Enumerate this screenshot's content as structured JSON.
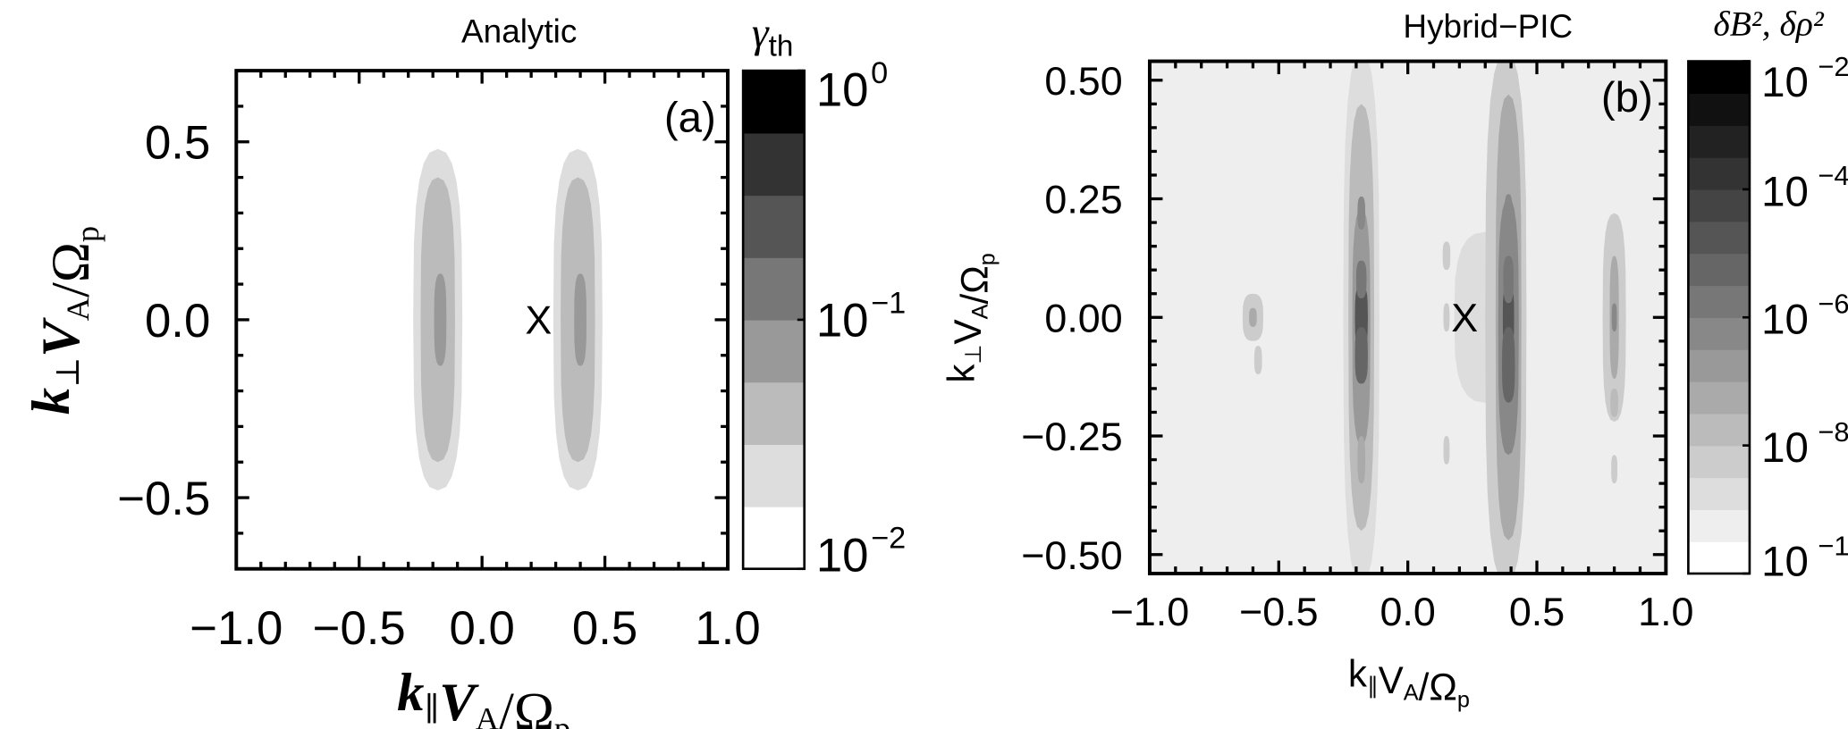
{
  "chart_data": [
    {
      "type": "heatmap",
      "panel_label": "(a)",
      "title": "Analytic",
      "xlabel_parts": [
        {
          "t": "k",
          "i": 1
        },
        {
          "t": "∥",
          "sub": 1
        },
        {
          "t": "V",
          "i": 1
        },
        {
          "t": "A",
          "sub": 1
        },
        {
          "t": "/Ω"
        },
        {
          "t": "p",
          "sub": 1
        }
      ],
      "ylabel_parts": [
        {
          "t": "k",
          "i": 1
        },
        {
          "t": "⊥",
          "sub": 1
        },
        {
          "t": "V",
          "i": 1
        },
        {
          "t": "A",
          "sub": 1
        },
        {
          "t": "/Ω"
        },
        {
          "t": "p",
          "sub": 1
        }
      ],
      "xlim": [
        -1.0,
        1.0
      ],
      "ylim": [
        -0.7,
        0.7
      ],
      "xticks": [
        -1.0,
        -0.5,
        0.0,
        0.5,
        1.0
      ],
      "xtick_labels": [
        "−1.0",
        "−0.5",
        "0.0",
        "0.5",
        "1.0"
      ],
      "yticks": [
        -0.5,
        0.0,
        0.5
      ],
      "ytick_labels": [
        "−0.5",
        "0.0",
        "0.5"
      ],
      "colorbar": {
        "label_main": "γ",
        "label_sub": "th",
        "scale": "log",
        "range": [
          0.01,
          1
        ],
        "levels": [
          "#ffffff",
          "#dddddd",
          "#bbbbbb",
          "#999999",
          "#777777",
          "#555555",
          "#333333",
          "#000000"
        ],
        "ticks": [
          {
            "base": "10",
            "exp": "0",
            "value": 1
          },
          {
            "base": "10",
            "exp": "−1",
            "value": 0.1
          },
          {
            "base": "10",
            "exp": "−2",
            "value": 0.01
          }
        ]
      },
      "marker": {
        "label": "X",
        "x": 0.23,
        "y": 0.0
      },
      "background_level": 0,
      "contours": [
        {
          "x": -0.18,
          "y": 0.0,
          "hw": 0.1,
          "hh": 0.48,
          "level": 1
        },
        {
          "x": -0.18,
          "y": 0.0,
          "hw": 0.07,
          "hh": 0.4,
          "level": 2
        },
        {
          "x": -0.17,
          "y": 0.0,
          "hw": 0.025,
          "hh": 0.13,
          "level": 3
        },
        {
          "x": 0.39,
          "y": 0.0,
          "hw": 0.1,
          "hh": 0.48,
          "level": 1
        },
        {
          "x": 0.39,
          "y": 0.0,
          "hw": 0.07,
          "hh": 0.4,
          "level": 2
        },
        {
          "x": 0.4,
          "y": 0.0,
          "hw": 0.025,
          "hh": 0.13,
          "level": 3
        }
      ]
    },
    {
      "type": "heatmap",
      "panel_label": "(b)",
      "title": "Hybrid−PIC",
      "xlabel_parts": [
        {
          "t": "k"
        },
        {
          "t": "∥",
          "sub": 1
        },
        {
          "t": "V"
        },
        {
          "t": "A",
          "sub": 1
        },
        {
          "t": "/Ω"
        },
        {
          "t": "p",
          "sub": 1
        }
      ],
      "ylabel_parts": [
        {
          "t": "k"
        },
        {
          "t": "⊥",
          "sub": 1
        },
        {
          "t": "V"
        },
        {
          "t": "A",
          "sub": 1
        },
        {
          "t": "/Ω"
        },
        {
          "t": "p",
          "sub": 1
        }
      ],
      "xlim": [
        -1.0,
        1.0
      ],
      "ylim": [
        -0.54,
        0.54
      ],
      "xticks": [
        -1.0,
        -0.5,
        0.0,
        0.5,
        1.0
      ],
      "xtick_labels": [
        "−1.0",
        "−0.5",
        "0.0",
        "0.5",
        "1.0"
      ],
      "yticks": [
        -0.5,
        -0.25,
        0.0,
        0.25,
        0.5
      ],
      "ytick_labels": [
        "−0.50",
        "−0.25",
        "0.00",
        "0.25",
        "0.50"
      ],
      "colorbar": {
        "label_main": "δB², δρ²",
        "label_sub": "",
        "scale": "log",
        "range": [
          1e-10,
          0.01
        ],
        "levels": [
          "#ffffff",
          "#eeeeee",
          "#dddddd",
          "#cccccc",
          "#bbbbbb",
          "#aaaaaa",
          "#999999",
          "#888888",
          "#777777",
          "#666666",
          "#555555",
          "#444444",
          "#333333",
          "#222222",
          "#111111",
          "#000000"
        ],
        "ticks": [
          {
            "base": "10",
            "exp": "−2",
            "value": 0.01
          },
          {
            "base": "10",
            "exp": "−4",
            "value": 0.0001
          },
          {
            "base": "10",
            "exp": "−6",
            "value": 1e-06
          },
          {
            "base": "10",
            "exp": "−8",
            "value": 1e-08
          },
          {
            "base": "10",
            "exp": "−10",
            "value": 1e-10
          }
        ]
      },
      "marker": {
        "label": "X",
        "x": 0.22,
        "y": 0.0
      },
      "background_level": 1,
      "contours": [
        {
          "x": 0.3,
          "y": 0.0,
          "hw": 0.12,
          "hh": 0.18,
          "level": 2
        },
        {
          "x": -0.18,
          "y": 0.0,
          "hw": 0.07,
          "hh": 0.56,
          "level": 2
        },
        {
          "x": -0.18,
          "y": 0.0,
          "hw": 0.05,
          "hh": 0.45,
          "level": 4
        },
        {
          "x": -0.18,
          "y": -0.02,
          "hw": 0.035,
          "hh": 0.25,
          "level": 6
        },
        {
          "x": -0.18,
          "y": 0.0,
          "hw": 0.025,
          "hh": 0.07,
          "level": 10
        },
        {
          "x": -0.18,
          "y": -0.08,
          "hw": 0.025,
          "hh": 0.06,
          "level": 9
        },
        {
          "x": -0.18,
          "y": 0.08,
          "hw": 0.02,
          "hh": 0.04,
          "level": 8
        },
        {
          "x": -0.18,
          "y": 0.22,
          "hw": 0.015,
          "hh": 0.035,
          "level": 7
        },
        {
          "x": -0.18,
          "y": -0.3,
          "hw": 0.015,
          "hh": 0.05,
          "level": 5
        },
        {
          "x": 0.38,
          "y": 0.0,
          "hw": 0.08,
          "hh": 0.56,
          "level": 3
        },
        {
          "x": 0.39,
          "y": 0.0,
          "hw": 0.05,
          "hh": 0.47,
          "level": 5
        },
        {
          "x": 0.39,
          "y": -0.02,
          "hw": 0.04,
          "hh": 0.27,
          "level": 7
        },
        {
          "x": 0.39,
          "y": 0.0,
          "hw": 0.022,
          "hh": 0.07,
          "level": 10
        },
        {
          "x": 0.39,
          "y": -0.1,
          "hw": 0.025,
          "hh": 0.08,
          "level": 9
        },
        {
          "x": 0.39,
          "y": 0.08,
          "hw": 0.02,
          "hh": 0.05,
          "level": 8
        },
        {
          "x": 0.39,
          "y": 0.22,
          "hw": 0.015,
          "hh": 0.04,
          "level": 7
        },
        {
          "x": 0.8,
          "y": 0.0,
          "hw": 0.045,
          "hh": 0.22,
          "level": 3
        },
        {
          "x": 0.8,
          "y": 0.0,
          "hw": 0.018,
          "hh": 0.13,
          "level": 5
        },
        {
          "x": 0.8,
          "y": 0.0,
          "hw": 0.01,
          "hh": 0.03,
          "level": 7
        },
        {
          "x": 0.8,
          "y": -0.18,
          "hw": 0.015,
          "hh": 0.03,
          "level": 4
        },
        {
          "x": 0.8,
          "y": -0.32,
          "hw": 0.012,
          "hh": 0.03,
          "level": 3
        },
        {
          "x": -0.6,
          "y": 0.0,
          "hw": 0.04,
          "hh": 0.05,
          "level": 3
        },
        {
          "x": -0.6,
          "y": 0.0,
          "hw": 0.015,
          "hh": 0.02,
          "level": 5
        },
        {
          "x": -0.58,
          "y": -0.09,
          "hw": 0.015,
          "hh": 0.03,
          "level": 3
        },
        {
          "x": 0.15,
          "y": 0.13,
          "hw": 0.015,
          "hh": 0.03,
          "level": 3
        },
        {
          "x": 0.15,
          "y": -0.28,
          "hw": 0.012,
          "hh": 0.03,
          "level": 3
        },
        {
          "x": 0.15,
          "y": 0.0,
          "hw": 0.012,
          "hh": 0.03,
          "level": 3
        }
      ]
    }
  ]
}
